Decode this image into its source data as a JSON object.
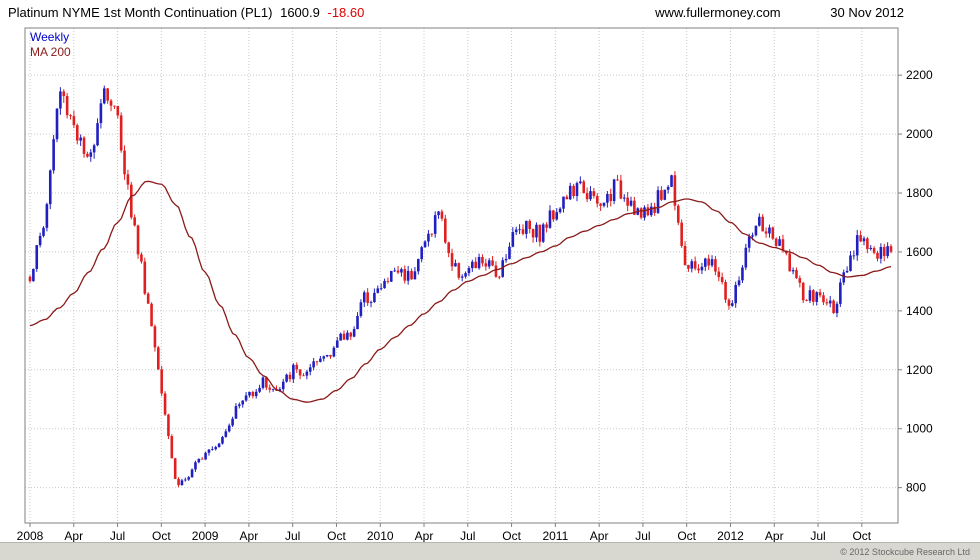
{
  "header": {
    "title": "Platinum NYME 1st Month Continuation (PL1)",
    "last_price": "1600.9",
    "change": "-18.60",
    "website": "www.fullermoney.com",
    "date": "30 Nov 2012"
  },
  "legend": {
    "timeframe": "Weekly",
    "ma": "MA 200"
  },
  "footer": {
    "copyright": "© 2012 Stockcube Research Ltd"
  },
  "colors": {
    "up": "#2020c0",
    "down": "#e02020",
    "ma": "#8b1a1a",
    "grid": "#c8c8c8",
    "axis": "#808080",
    "change": "#e00000"
  },
  "chart_data": {
    "type": "candlestick",
    "title": "Platinum NYME 1st Month Continuation (PL1)",
    "timeframe": "weekly",
    "last_price": 1600.9,
    "change": -18.6,
    "ylim": [
      680,
      2360
    ],
    "yticks": [
      800,
      1000,
      1200,
      1400,
      1600,
      1800,
      2000,
      2200
    ],
    "xticks": [
      {
        "t": 0,
        "label": "2008"
      },
      {
        "t": 3,
        "label": "Apr"
      },
      {
        "t": 6,
        "label": "Jul"
      },
      {
        "t": 9,
        "label": "Oct"
      },
      {
        "t": 12,
        "label": "2009"
      },
      {
        "t": 15,
        "label": "Apr"
      },
      {
        "t": 18,
        "label": "Jul"
      },
      {
        "t": 21,
        "label": "Oct"
      },
      {
        "t": 24,
        "label": "2010"
      },
      {
        "t": 27,
        "label": "Apr"
      },
      {
        "t": 30,
        "label": "Jul"
      },
      {
        "t": 33,
        "label": "Oct"
      },
      {
        "t": 36,
        "label": "2011"
      },
      {
        "t": 39,
        "label": "Apr"
      },
      {
        "t": 42,
        "label": "Jul"
      },
      {
        "t": 45,
        "label": "Oct"
      },
      {
        "t": 48,
        "label": "2012"
      },
      {
        "t": 51,
        "label": "Apr"
      },
      {
        "t": 54,
        "label": "Jul"
      },
      {
        "t": 57,
        "label": "Oct"
      }
    ],
    "weeks": 256,
    "series": [
      {
        "name": "PL1 weekly close",
        "type": "candlestick",
        "monthly_values": [
          1520,
          1700,
          2150,
          2040,
          1880,
          2170,
          2050,
          1720,
          1450,
          1150,
          810,
          840,
          930,
          960,
          1060,
          1120,
          1160,
          1120,
          1200,
          1180,
          1240,
          1290,
          1330,
          1450,
          1470,
          1540,
          1520,
          1620,
          1740,
          1540,
          1530,
          1570,
          1520,
          1650,
          1700,
          1660,
          1750,
          1800,
          1820,
          1740,
          1820,
          1790,
          1710,
          1780,
          1850,
          1530,
          1560,
          1550,
          1400,
          1590,
          1700,
          1640,
          1570,
          1440,
          1450,
          1410,
          1530,
          1670,
          1580,
          1601
        ]
      },
      {
        "name": "MA 200",
        "type": "line",
        "monthly_values": [
          1350,
          1370,
          1410,
          1460,
          1530,
          1610,
          1700,
          1790,
          1840,
          1830,
          1760,
          1650,
          1530,
          1420,
          1320,
          1240,
          1180,
          1130,
          1100,
          1090,
          1100,
          1130,
          1170,
          1220,
          1270,
          1310,
          1350,
          1390,
          1430,
          1470,
          1500,
          1520,
          1540,
          1560,
          1580,
          1600,
          1620,
          1650,
          1670,
          1690,
          1710,
          1730,
          1740,
          1750,
          1770,
          1780,
          1770,
          1740,
          1700,
          1660,
          1630,
          1615,
          1600,
          1580,
          1555,
          1530,
          1515,
          1520,
          1535,
          1550
        ]
      }
    ]
  }
}
